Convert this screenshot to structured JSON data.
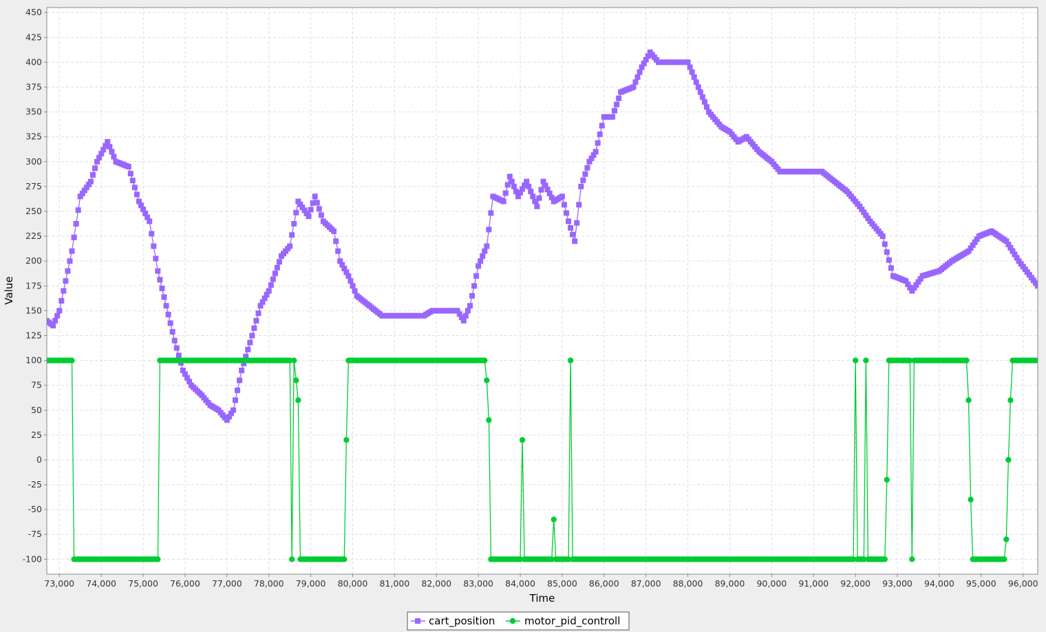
{
  "chart_data": {
    "type": "line",
    "title": "",
    "xlabel": "Time",
    "ylabel": "Value",
    "xlim": [
      72700,
      96350
    ],
    "ylim": [
      -115,
      455
    ],
    "x_ticks": [
      73000,
      74000,
      75000,
      76000,
      77000,
      78000,
      79000,
      80000,
      81000,
      82000,
      83000,
      84000,
      85000,
      86000,
      87000,
      88000,
      89000,
      90000,
      91000,
      92000,
      93000,
      94000,
      95000,
      96000
    ],
    "x_tick_labels": [
      "73,000",
      "74,000",
      "75,000",
      "76,000",
      "77,000",
      "78,000",
      "79,000",
      "80,000",
      "81,000",
      "82,000",
      "83,000",
      "84,000",
      "85,000",
      "86,000",
      "87,000",
      "88,000",
      "89,000",
      "90,000",
      "91,000",
      "92,000",
      "93,000",
      "94,000",
      "95,000",
      "96,000"
    ],
    "y_ticks": [
      450,
      425,
      400,
      375,
      350,
      325,
      300,
      275,
      250,
      225,
      200,
      175,
      150,
      125,
      100,
      75,
      50,
      25,
      0,
      -25,
      -50,
      -75,
      -100
    ],
    "y_tick_labels": [
      "450",
      "425",
      "400",
      "375",
      "350",
      "325",
      "300",
      "275",
      "250",
      "225",
      "200",
      "175",
      "150",
      "125",
      "100",
      "75",
      "50",
      "25",
      "0",
      "-25",
      "-50",
      "-75",
      "-100"
    ],
    "grid": true,
    "legend_position": "bottom-center",
    "series": [
      {
        "name": "cart_position",
        "color": "#9966ff",
        "marker": "square",
        "sample_step": 50,
        "keypoints": [
          [
            72700,
            140
          ],
          [
            72850,
            135
          ],
          [
            73000,
            150
          ],
          [
            73300,
            210
          ],
          [
            73500,
            265
          ],
          [
            73750,
            280
          ],
          [
            73900,
            300
          ],
          [
            74150,
            320
          ],
          [
            74350,
            300
          ],
          [
            74650,
            295
          ],
          [
            74900,
            260
          ],
          [
            75150,
            240
          ],
          [
            75350,
            190
          ],
          [
            75550,
            155
          ],
          [
            75750,
            120
          ],
          [
            75950,
            90
          ],
          [
            76150,
            75
          ],
          [
            76400,
            65
          ],
          [
            76600,
            55
          ],
          [
            76800,
            50
          ],
          [
            77000,
            40
          ],
          [
            77150,
            50
          ],
          [
            77350,
            90
          ],
          [
            77600,
            125
          ],
          [
            77800,
            155
          ],
          [
            78000,
            170
          ],
          [
            78300,
            205
          ],
          [
            78500,
            215
          ],
          [
            78700,
            260
          ],
          [
            78950,
            245
          ],
          [
            79100,
            265
          ],
          [
            79300,
            240
          ],
          [
            79550,
            230
          ],
          [
            79700,
            200
          ],
          [
            79900,
            185
          ],
          [
            80100,
            165
          ],
          [
            80400,
            155
          ],
          [
            80700,
            145
          ],
          [
            81000,
            145
          ],
          [
            81700,
            145
          ],
          [
            81900,
            150
          ],
          [
            82500,
            150
          ],
          [
            82650,
            140
          ],
          [
            82800,
            155
          ],
          [
            83000,
            195
          ],
          [
            83200,
            215
          ],
          [
            83350,
            265
          ],
          [
            83600,
            260
          ],
          [
            83750,
            285
          ],
          [
            83950,
            265
          ],
          [
            84150,
            280
          ],
          [
            84400,
            255
          ],
          [
            84550,
            280
          ],
          [
            84800,
            260
          ],
          [
            85000,
            265
          ],
          [
            85150,
            240
          ],
          [
            85300,
            220
          ],
          [
            85450,
            275
          ],
          [
            85650,
            300
          ],
          [
            85800,
            310
          ],
          [
            86000,
            345
          ],
          [
            86200,
            345
          ],
          [
            86400,
            370
          ],
          [
            86700,
            375
          ],
          [
            86900,
            395
          ],
          [
            87100,
            410
          ],
          [
            87300,
            400
          ],
          [
            87600,
            400
          ],
          [
            88000,
            400
          ],
          [
            88200,
            380
          ],
          [
            88500,
            350
          ],
          [
            88800,
            335
          ],
          [
            89000,
            330
          ],
          [
            89200,
            320
          ],
          [
            89400,
            325
          ],
          [
            89700,
            310
          ],
          [
            90000,
            300
          ],
          [
            90200,
            290
          ],
          [
            90500,
            290
          ],
          [
            91200,
            290
          ],
          [
            91500,
            280
          ],
          [
            91800,
            270
          ],
          [
            92100,
            255
          ],
          [
            92350,
            240
          ],
          [
            92650,
            225
          ],
          [
            92900,
            185
          ],
          [
            93200,
            180
          ],
          [
            93350,
            170
          ],
          [
            93600,
            185
          ],
          [
            94000,
            190
          ],
          [
            94300,
            200
          ],
          [
            94700,
            210
          ],
          [
            94950,
            225
          ],
          [
            95250,
            230
          ],
          [
            95600,
            220
          ],
          [
            95900,
            200
          ],
          [
            96350,
            175
          ]
        ]
      },
      {
        "name": "motor_pid_controll",
        "color": "#00cc33",
        "marker": "circle",
        "sample_step": 50,
        "keypoints": [
          [
            72700,
            100
          ],
          [
            73300,
            100
          ],
          [
            73350,
            -100
          ],
          [
            75350,
            -100
          ],
          [
            75400,
            100
          ],
          [
            78500,
            100
          ],
          [
            78550,
            -100
          ],
          [
            78600,
            100
          ],
          [
            78650,
            80
          ],
          [
            78700,
            60
          ],
          [
            78750,
            -100
          ],
          [
            79800,
            -100
          ],
          [
            79850,
            20
          ],
          [
            79900,
            100
          ],
          [
            83150,
            100
          ],
          [
            83200,
            80
          ],
          [
            83250,
            40
          ],
          [
            83300,
            -100
          ],
          [
            84000,
            -100
          ],
          [
            84050,
            20
          ],
          [
            84100,
            -100
          ],
          [
            84750,
            -100
          ],
          [
            84800,
            -60
          ],
          [
            84850,
            -100
          ],
          [
            85150,
            -100
          ],
          [
            85200,
            100
          ],
          [
            85250,
            -100
          ],
          [
            91950,
            -100
          ],
          [
            92000,
            100
          ],
          [
            92050,
            -100
          ],
          [
            92200,
            -100
          ],
          [
            92250,
            100
          ],
          [
            92300,
            -100
          ],
          [
            92700,
            -100
          ],
          [
            92750,
            -20
          ],
          [
            92800,
            100
          ],
          [
            93300,
            100
          ],
          [
            93350,
            -100
          ],
          [
            93400,
            100
          ],
          [
            94650,
            100
          ],
          [
            94700,
            60
          ],
          [
            94750,
            -40
          ],
          [
            94800,
            -100
          ],
          [
            95550,
            -100
          ],
          [
            95600,
            -80
          ],
          [
            95650,
            0
          ],
          [
            95700,
            60
          ],
          [
            95750,
            100
          ],
          [
            96350,
            100
          ]
        ]
      }
    ]
  }
}
